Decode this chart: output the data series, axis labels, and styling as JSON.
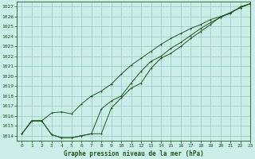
{
  "title": "Graphe pression niveau de la mer (hPa)",
  "bg_color": "#cceee8",
  "grid_color": "#9dcfca",
  "line_color": "#1a5c1a",
  "xlim": [
    -0.5,
    23
  ],
  "ylim": [
    1013.5,
    1027.5
  ],
  "xticks": [
    0,
    1,
    2,
    3,
    4,
    5,
    6,
    7,
    8,
    9,
    10,
    11,
    12,
    13,
    14,
    15,
    16,
    17,
    18,
    19,
    20,
    21,
    22,
    23
  ],
  "yticks": [
    1014,
    1015,
    1016,
    1017,
    1018,
    1019,
    1020,
    1021,
    1022,
    1023,
    1024,
    1025,
    1026,
    1027
  ],
  "line1_x": [
    0,
    1,
    2,
    3,
    4,
    5,
    6,
    7,
    8,
    9,
    10,
    11,
    12,
    13,
    14,
    15,
    16,
    17,
    18,
    19,
    20,
    21,
    22,
    23
  ],
  "line1_y": [
    1014.2,
    1015.5,
    1015.5,
    1016.3,
    1016.4,
    1016.2,
    1017.2,
    1018.0,
    1018.5,
    1019.2,
    1020.2,
    1021.1,
    1021.8,
    1022.5,
    1023.2,
    1023.8,
    1024.3,
    1024.8,
    1025.2,
    1025.7,
    1026.0,
    1026.4,
    1026.9,
    1027.3
  ],
  "line2_x": [
    0,
    1,
    2,
    3,
    4,
    5,
    6,
    7,
    8,
    9,
    10,
    11,
    12,
    13,
    14,
    15,
    16,
    17,
    18,
    19,
    20,
    21,
    22,
    23
  ],
  "line2_y": [
    1014.2,
    1015.5,
    1015.5,
    1014.1,
    1013.8,
    1013.8,
    1014.0,
    1014.2,
    1014.2,
    1016.8,
    1017.8,
    1018.8,
    1019.3,
    1020.8,
    1021.8,
    1022.3,
    1023.0,
    1023.8,
    1024.5,
    1025.2,
    1026.0,
    1026.3,
    1027.0,
    1027.3
  ],
  "line3_x": [
    0,
    1,
    2,
    3,
    4,
    5,
    6,
    7,
    8,
    9,
    10,
    11,
    12,
    13,
    14,
    15,
    16,
    17,
    18,
    19,
    20,
    21,
    22,
    23
  ],
  "line3_y": [
    1014.2,
    1015.5,
    1015.5,
    1014.1,
    1013.8,
    1013.8,
    1014.0,
    1014.2,
    1016.7,
    1017.5,
    1018.0,
    1019.3,
    1020.5,
    1021.5,
    1022.0,
    1022.8,
    1023.4,
    1024.1,
    1024.8,
    1025.4,
    1025.9,
    1026.4,
    1026.9,
    1027.3
  ]
}
